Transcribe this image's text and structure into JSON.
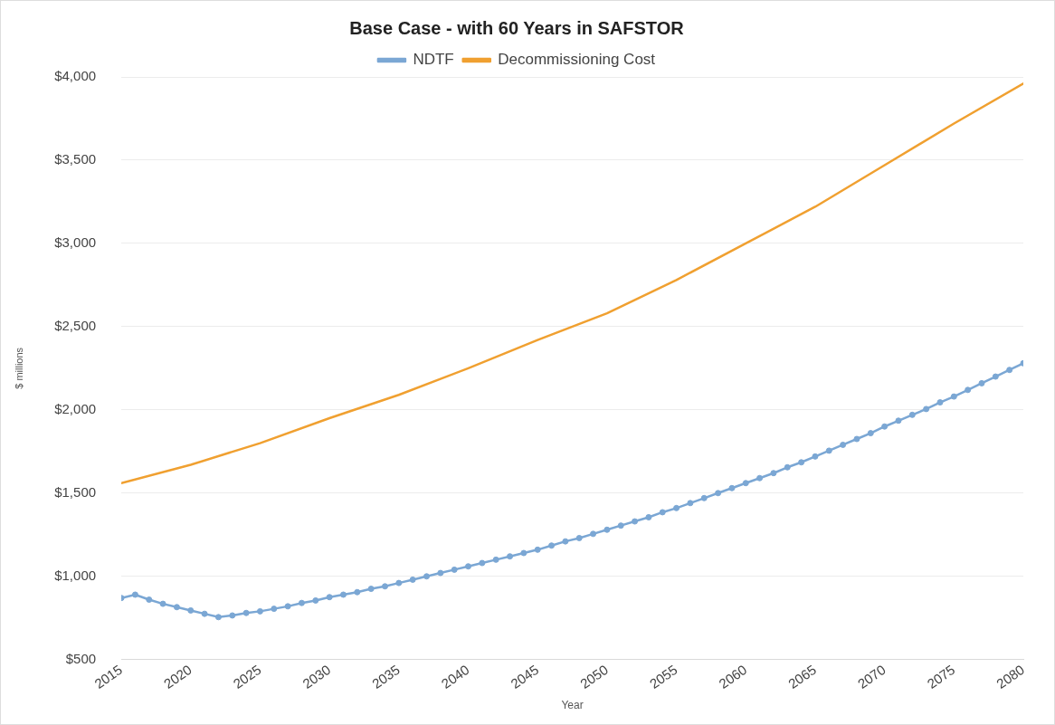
{
  "chart_data": {
    "type": "line",
    "title": "Base Case - with 60 Years in SAFSTOR",
    "xlabel": "Year",
    "ylabel": "$ millions",
    "xlim": [
      2015,
      2080
    ],
    "xticks": [
      2015,
      2020,
      2025,
      2030,
      2035,
      2040,
      2045,
      2050,
      2055,
      2060,
      2065,
      2070,
      2075,
      2080
    ],
    "ylim": [
      500,
      4000
    ],
    "yticks": [
      {
        "value": 500,
        "label": "$500"
      },
      {
        "value": 1000,
        "label": "$1,000"
      },
      {
        "value": 1500,
        "label": "$1,500"
      },
      {
        "value": 2000,
        "label": "$2,000"
      },
      {
        "value": 2500,
        "label": "$2,500"
      },
      {
        "value": 3000,
        "label": "$3,000"
      },
      {
        "value": 3500,
        "label": "$3,500"
      },
      {
        "value": 4000,
        "label": "$4,000"
      }
    ],
    "grid": "y",
    "legend": "top",
    "line_style": "solid",
    "series": [
      {
        "name": "NDTF",
        "color": "#7ba7d4",
        "marker": "circle",
        "x": [
          2015,
          2016,
          2017,
          2018,
          2019,
          2020,
          2021,
          2022,
          2023,
          2024,
          2025,
          2026,
          2027,
          2028,
          2029,
          2030,
          2031,
          2032,
          2033,
          2034,
          2035,
          2036,
          2037,
          2038,
          2039,
          2040,
          2041,
          2042,
          2043,
          2044,
          2045,
          2046,
          2047,
          2048,
          2049,
          2050,
          2051,
          2052,
          2053,
          2054,
          2055,
          2056,
          2057,
          2058,
          2059,
          2060,
          2061,
          2062,
          2063,
          2064,
          2065,
          2066,
          2067,
          2068,
          2069,
          2070,
          2071,
          2072,
          2073,
          2074,
          2075,
          2076,
          2077,
          2078,
          2079,
          2080
        ],
        "values": [
          870,
          890,
          860,
          835,
          815,
          795,
          775,
          755,
          765,
          780,
          790,
          805,
          820,
          840,
          855,
          875,
          890,
          905,
          925,
          940,
          960,
          980,
          1000,
          1020,
          1040,
          1060,
          1080,
          1100,
          1120,
          1140,
          1160,
          1185,
          1210,
          1230,
          1255,
          1280,
          1305,
          1330,
          1355,
          1385,
          1410,
          1440,
          1470,
          1500,
          1530,
          1560,
          1590,
          1620,
          1655,
          1685,
          1720,
          1755,
          1790,
          1825,
          1860,
          1900,
          1935,
          1970,
          2005,
          2045,
          2080,
          2120,
          2160,
          2200,
          2240,
          2280
        ]
      },
      {
        "name": "Decommissioning Cost",
        "color": "#f0a030",
        "marker": "none",
        "x": [
          2015,
          2020,
          2025,
          2030,
          2035,
          2040,
          2045,
          2050,
          2055,
          2060,
          2065,
          2070,
          2075,
          2080
        ],
        "values": [
          1560,
          1670,
          1800,
          1950,
          2090,
          2250,
          2420,
          2580,
          2780,
          3000,
          3220,
          3470,
          3720,
          3960
        ]
      }
    ]
  }
}
